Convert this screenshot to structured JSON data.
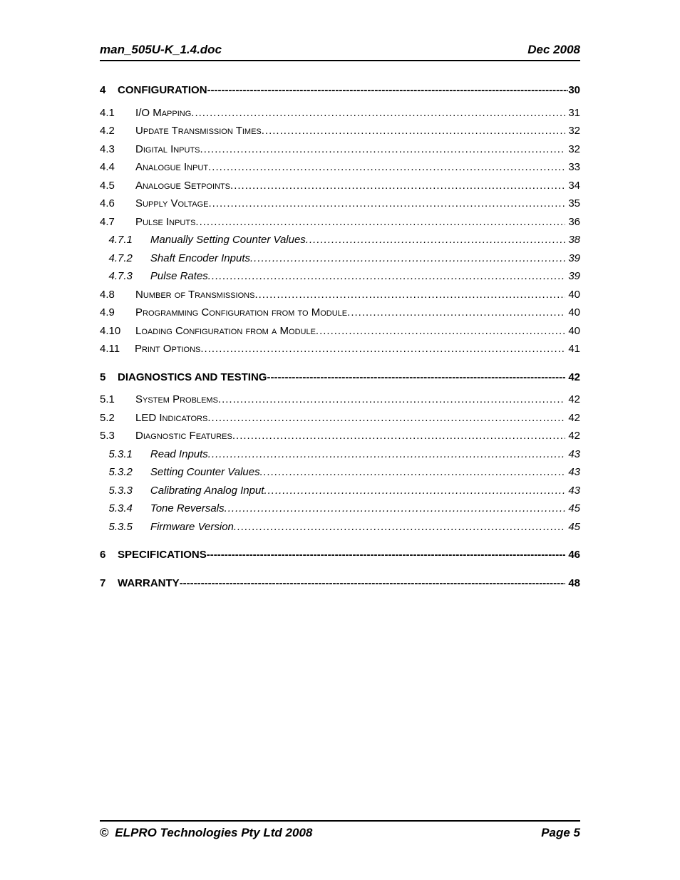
{
  "header": {
    "left": "man_505U-K_1.4.doc",
    "right": "Dec 2008"
  },
  "footer": {
    "copyright_symbol": "©",
    "left": "ELPRO Technologies Pty Ltd 2008",
    "right": "Page 5"
  },
  "toc": {
    "chapters": [
      {
        "num": "4",
        "title": "CONFIGURATION",
        "page": "30",
        "sections": [
          {
            "num": "4.1",
            "title": "I/O Mapping",
            "page": "31"
          },
          {
            "num": "4.2",
            "title": "Update Transmission Times",
            "page": "32"
          },
          {
            "num": "4.3",
            "title": "Digital Inputs",
            "page": "32"
          },
          {
            "num": "4.4",
            "title": "Analogue Input",
            "page": "33"
          },
          {
            "num": "4.5",
            "title": "Analogue Setpoints",
            "page": "34"
          },
          {
            "num": "4.6",
            "title": "Supply Voltage",
            "page": "35"
          },
          {
            "num": "4.7",
            "title": "Pulse Inputs",
            "page": "36",
            "subs": [
              {
                "num": "4.7.1",
                "title": "Manually Setting Counter Values",
                "page": "38"
              },
              {
                "num": "4.7.2",
                "title": "Shaft Encoder Inputs",
                "page": "39"
              },
              {
                "num": "4.7.3",
                "title": "Pulse Rates",
                "page": "39"
              }
            ]
          },
          {
            "num": "4.8",
            "title": "Number of Transmissions",
            "page": "40"
          },
          {
            "num": "4.9",
            "title": "Programming Configuration from to Module",
            "page": "40"
          },
          {
            "num": "4.10",
            "title": "Loading Configuration from a Module",
            "page": "40"
          },
          {
            "num": "4.11",
            "title": "Print Options",
            "page": "41"
          }
        ]
      },
      {
        "num": "5",
        "title": "DIAGNOSTICS AND TESTING",
        "page": "42",
        "sections": [
          {
            "num": "5.1",
            "title": "System Problems",
            "page": "42"
          },
          {
            "num": "5.2",
            "title": "LED Indicators",
            "page": "42"
          },
          {
            "num": "5.3",
            "title": "Diagnostic Features",
            "page": "42",
            "subs": [
              {
                "num": "5.3.1",
                "title": "Read Inputs",
                "page": "43"
              },
              {
                "num": "5.3.2",
                "title": "Setting Counter Values",
                "page": "43"
              },
              {
                "num": "5.3.3",
                "title": "Calibrating Analog Input",
                "page": "43"
              },
              {
                "num": "5.3.4",
                "title": "Tone Reversals",
                "page": "45"
              },
              {
                "num": "5.3.5",
                "title": "Firmware Version",
                "page": "45"
              }
            ]
          }
        ]
      },
      {
        "num": "6",
        "title": "SPECIFICATIONS",
        "page": "46",
        "sections": []
      },
      {
        "num": "7",
        "title": "WARRANTY",
        "page": "48",
        "sections": []
      }
    ]
  }
}
